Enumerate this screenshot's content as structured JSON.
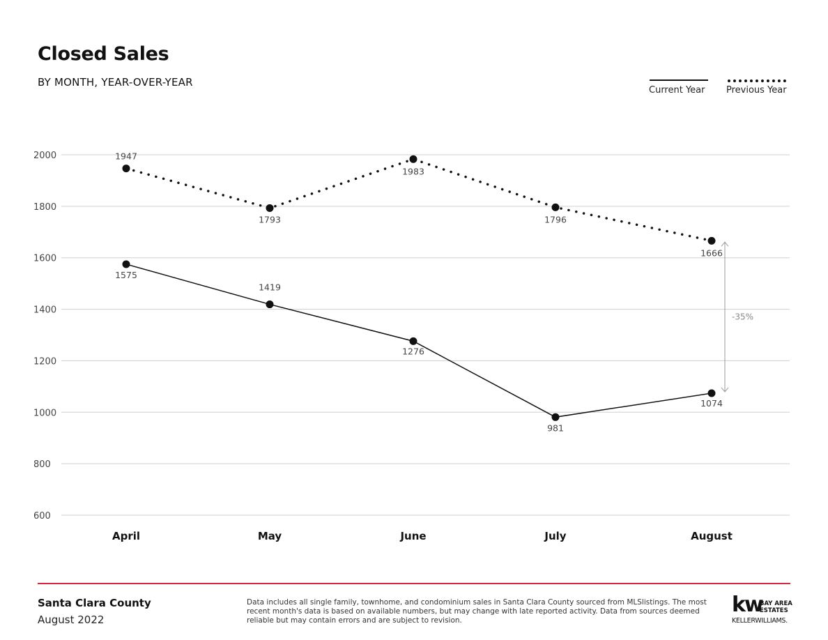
{
  "header": {
    "title": "Closed Sales",
    "subtitle": "BY MONTH, YEAR-OVER-YEAR"
  },
  "legend": {
    "current_label": "Current Year",
    "previous_label": "Previous Year"
  },
  "chart_data": {
    "type": "line",
    "categories": [
      "April",
      "May",
      "June",
      "July",
      "August"
    ],
    "series": [
      {
        "name": "Current Year",
        "style": "solid",
        "values": [
          1575,
          1419,
          1276,
          981,
          1074
        ]
      },
      {
        "name": "Previous Year",
        "style": "dotted",
        "values": [
          1947,
          1793,
          1983,
          1796,
          1666
        ]
      }
    ],
    "yticks": [
      2000,
      1800,
      1600,
      1400,
      1200,
      1000,
      800,
      600
    ],
    "ylim": [
      600,
      2000
    ],
    "grid": true,
    "legend_position": "top-right",
    "annotation": {
      "label": "-35%",
      "category": "August"
    }
  },
  "footer": {
    "county": "Santa Clara County",
    "date": "August 2022",
    "disclaimer": "Data includes all single family, townhome, and condominium sales in Santa Clara County sourced from MLSlistings. The most recent month's data is based on available numbers, but may change with late reported activity. Data from sources deemed reliable but may contain errors and are subject to revision."
  },
  "logo": {
    "mark": "kw",
    "region": "BAY AREA\nESTATES",
    "brand": "KELLERWILLIAMS."
  },
  "colors": {
    "line": "#111111",
    "grid": "#cfcfcf",
    "accent_rule": "#d7263d",
    "annotation": "#999999"
  }
}
